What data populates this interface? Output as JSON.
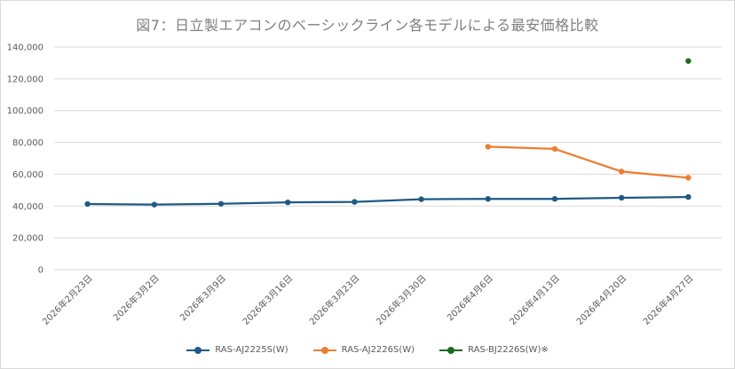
{
  "chart_data": {
    "type": "line",
    "title": "図7：日立製エアコンのベーシックライン各モデルによる最安価格比較",
    "categories": [
      "2026年2月23日",
      "2026年3月2日",
      "2026年3月9日",
      "2026年3月16日",
      "2026年3月23日",
      "2026年3月30日",
      "2026年4月6日",
      "2026年4月13日",
      "2026年4月20日",
      "2026年4月27日"
    ],
    "y_ticks": [
      "0",
      "20,000",
      "40,000",
      "60,000",
      "80,000",
      "100,000",
      "120,000",
      "140,000"
    ],
    "ylim": [
      0,
      140000
    ],
    "grid": true,
    "legend_position": "bottom",
    "series": [
      {
        "name": "RAS-AJ2225S(W)",
        "color": "#1f5a84",
        "values": [
          41300,
          40900,
          41400,
          42300,
          42600,
          44300,
          44500,
          44500,
          45200,
          45700
        ]
      },
      {
        "name": "RAS-AJ2226S(W)",
        "color": "#ed7d31",
        "values": [
          null,
          null,
          null,
          null,
          null,
          null,
          77300,
          75900,
          61700,
          57800
        ]
      },
      {
        "name": "RAS-BJ2226S(W)※",
        "color": "#1e6b1e",
        "values": [
          null,
          null,
          null,
          null,
          null,
          null,
          null,
          null,
          null,
          131200
        ]
      }
    ]
  }
}
